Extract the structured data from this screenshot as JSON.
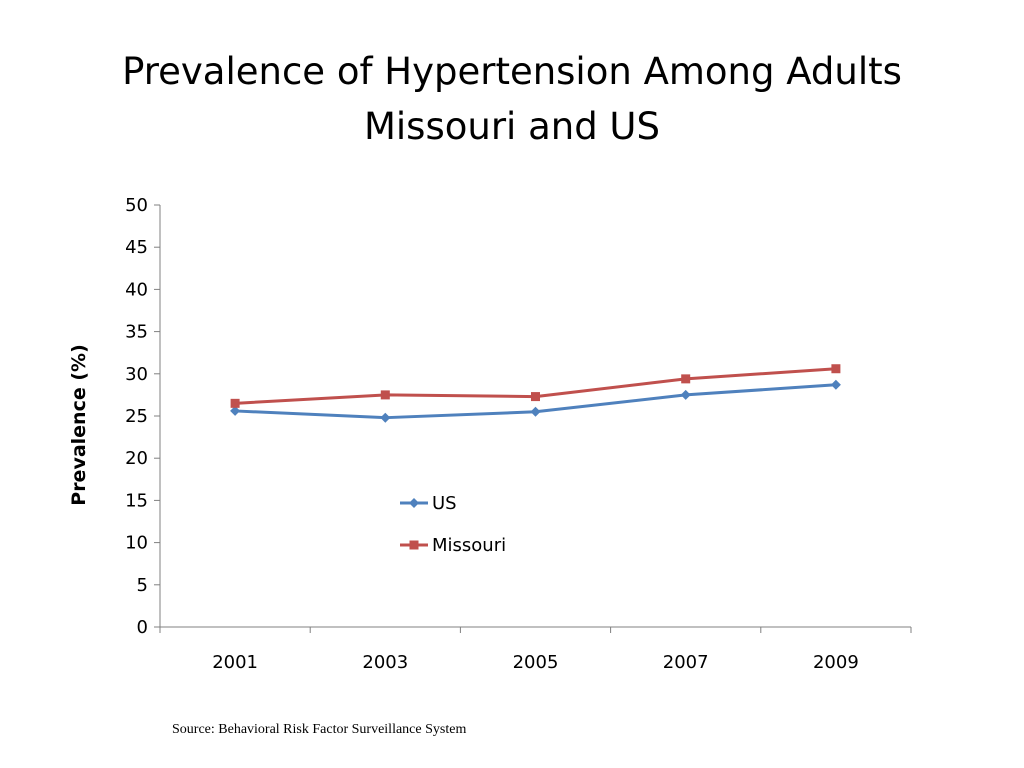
{
  "slide": {
    "title_line1": "Prevalence of Hypertension Among Adults",
    "title_line2": "Missouri and US",
    "source": "Source: Behavioral Risk Factor Surveillance System"
  },
  "chart_data": {
    "type": "line",
    "title": "",
    "xlabel": "",
    "ylabel": "Prevalence (%)",
    "categories": [
      "2001",
      "2003",
      "2005",
      "2007",
      "2009"
    ],
    "ylim": [
      0,
      50
    ],
    "yticks": [
      0,
      5,
      10,
      15,
      20,
      25,
      30,
      35,
      40,
      45,
      50
    ],
    "grid": false,
    "legend_position": "center",
    "series": [
      {
        "name": "US",
        "color": "#4F81BD",
        "marker": "diamond",
        "values": [
          25.6,
          24.8,
          25.5,
          27.5,
          28.7
        ]
      },
      {
        "name": "Missouri",
        "color": "#C0504D",
        "marker": "square",
        "values": [
          26.5,
          27.5,
          27.3,
          29.4,
          30.6
        ]
      }
    ]
  }
}
